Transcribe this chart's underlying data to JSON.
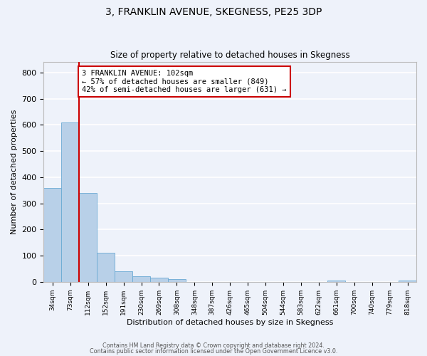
{
  "title": "3, FRANKLIN AVENUE, SKEGNESS, PE25 3DP",
  "subtitle": "Size of property relative to detached houses in Skegness",
  "xlabel": "Distribution of detached houses by size in Skegness",
  "ylabel": "Number of detached properties",
  "bar_labels": [
    "34sqm",
    "73sqm",
    "112sqm",
    "152sqm",
    "191sqm",
    "230sqm",
    "269sqm",
    "308sqm",
    "348sqm",
    "387sqm",
    "426sqm",
    "465sqm",
    "504sqm",
    "544sqm",
    "583sqm",
    "622sqm",
    "661sqm",
    "700sqm",
    "740sqm",
    "779sqm",
    "818sqm"
  ],
  "bar_values": [
    360,
    610,
    340,
    112,
    40,
    22,
    15,
    10,
    0,
    0,
    0,
    0,
    0,
    0,
    0,
    0,
    5,
    0,
    0,
    0,
    5
  ],
  "bar_color": "#b8d0e8",
  "bar_edge_color": "#6aaad4",
  "background_color": "#eef2fa",
  "grid_color": "#ffffff",
  "marker_label": "3 FRANKLIN AVENUE: 102sqm",
  "annotation_line1": "← 57% of detached houses are smaller (849)",
  "annotation_line2": "42% of semi-detached houses are larger (631) →",
  "annotation_box_color": "#ffffff",
  "annotation_box_edge": "#cc0000",
  "marker_line_color": "#cc0000",
  "ylim": [
    0,
    840
  ],
  "yticks": [
    0,
    100,
    200,
    300,
    400,
    500,
    600,
    700,
    800
  ],
  "footnote1": "Contains HM Land Registry data © Crown copyright and database right 2024.",
  "footnote2": "Contains public sector information licensed under the Open Government Licence v3.0."
}
